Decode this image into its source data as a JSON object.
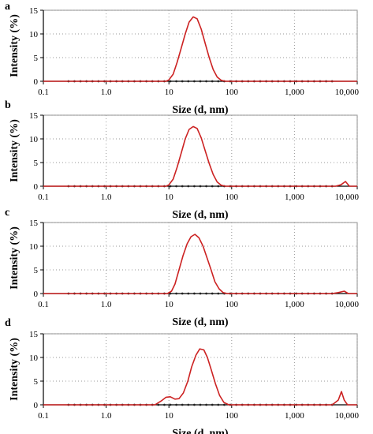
{
  "chart_data": [
    {
      "type": "line",
      "panel_label": "a",
      "xlabel": "Size (d, nm)",
      "ylabel": "Intensity (%)",
      "xscale": "log",
      "xlim": [
        0.1,
        10000
      ],
      "ylim": [
        0,
        15
      ],
      "grid": true,
      "x_ticks": [
        {
          "value": 0.1,
          "label": "0.1"
        },
        {
          "value": 1,
          "label": "1.0"
        },
        {
          "value": 10,
          "label": "10"
        },
        {
          "value": 100,
          "label": "100"
        },
        {
          "value": 1000,
          "label": "1,000"
        },
        {
          "value": 10000,
          "label": "10,000"
        }
      ],
      "y_ticks": [
        {
          "value": 0,
          "label": "0"
        },
        {
          "value": 5,
          "label": "5"
        },
        {
          "value": 10,
          "label": "10"
        },
        {
          "value": 15,
          "label": "15"
        }
      ],
      "series": [
        {
          "color": "#cc2222",
          "x": [
            0.1,
            9,
            10,
            11.7,
            13.5,
            15.7,
            18.2,
            21,
            24.4,
            28.2,
            32.7,
            37.8,
            43.8,
            50.7,
            58.8,
            68,
            80,
            10000
          ],
          "y": [
            0,
            0,
            0.3,
            1.5,
            4,
            7,
            10,
            12.5,
            13.6,
            13.2,
            11,
            8,
            5,
            2.5,
            0.9,
            0.2,
            0,
            0
          ]
        }
      ]
    },
    {
      "type": "line",
      "panel_label": "b",
      "xlabel": "Size (d, nm)",
      "ylabel": "Intensity (%)",
      "xscale": "log",
      "xlim": [
        0.1,
        10000
      ],
      "ylim": [
        0,
        15
      ],
      "grid": true,
      "x_ticks": [
        {
          "value": 0.1,
          "label": "0.1"
        },
        {
          "value": 1,
          "label": "1.0"
        },
        {
          "value": 10,
          "label": "10"
        },
        {
          "value": 100,
          "label": "100"
        },
        {
          "value": 1000,
          "label": "1,000"
        },
        {
          "value": 10000,
          "label": "10,000"
        }
      ],
      "y_ticks": [
        {
          "value": 0,
          "label": "0"
        },
        {
          "value": 5,
          "label": "5"
        },
        {
          "value": 10,
          "label": "10"
        },
        {
          "value": 15,
          "label": "15"
        }
      ],
      "series": [
        {
          "color": "#cc2222",
          "x": [
            0.1,
            9,
            10,
            11.7,
            13.5,
            15.7,
            18.2,
            21,
            24.4,
            28.2,
            32.7,
            37.8,
            43.8,
            50.7,
            58.8,
            68,
            80,
            4500,
            5500,
            6500,
            7500,
            10000
          ],
          "y": [
            0,
            0,
            0.3,
            1.5,
            4,
            7,
            10,
            12,
            12.6,
            12.2,
            10.2,
            7.5,
            4.8,
            2.5,
            0.9,
            0.2,
            0,
            0,
            0.3,
            1,
            0,
            0
          ]
        }
      ]
    },
    {
      "type": "line",
      "panel_label": "c",
      "xlabel": "Size (d, nm)",
      "ylabel": "Intensity (%)",
      "xscale": "log",
      "xlim": [
        0.1,
        10000
      ],
      "ylim": [
        0,
        15
      ],
      "grid": true,
      "x_ticks": [
        {
          "value": 0.1,
          "label": "0.1"
        },
        {
          "value": 1,
          "label": "1.0"
        },
        {
          "value": 10,
          "label": "10"
        },
        {
          "value": 100,
          "label": "100"
        },
        {
          "value": 1000,
          "label": "1,000"
        },
        {
          "value": 10000,
          "label": "10,000"
        }
      ],
      "y_ticks": [
        {
          "value": 0,
          "label": "0"
        },
        {
          "value": 5,
          "label": "5"
        },
        {
          "value": 10,
          "label": "10"
        },
        {
          "value": 15,
          "label": "15"
        }
      ],
      "series": [
        {
          "color": "#cc2222",
          "x": [
            0.1,
            9.5,
            11,
            12.5,
            14.5,
            16.8,
            19.5,
            22.5,
            26,
            30,
            35,
            40.5,
            47,
            54,
            63,
            73,
            85,
            4000,
            5000,
            6200,
            7200,
            10000
          ],
          "y": [
            0,
            0,
            0.5,
            2,
            5,
            8,
            10.5,
            12,
            12.5,
            11.8,
            10,
            7.5,
            5,
            2.5,
            1,
            0.2,
            0,
            0,
            0.2,
            0.5,
            0,
            0
          ]
        }
      ]
    },
    {
      "type": "line",
      "panel_label": "d",
      "xlabel": "Size (d, nm)",
      "ylabel": "Intensity (%)",
      "xscale": "log",
      "xlim": [
        0.1,
        10000
      ],
      "ylim": [
        0,
        15
      ],
      "grid": true,
      "x_ticks": [
        {
          "value": 0.1,
          "label": "0.1"
        },
        {
          "value": 1,
          "label": "1.0"
        },
        {
          "value": 10,
          "label": "10"
        },
        {
          "value": 100,
          "label": "100"
        },
        {
          "value": 1000,
          "label": "1,000"
        },
        {
          "value": 10000,
          "label": "10,000"
        }
      ],
      "y_ticks": [
        {
          "value": 0,
          "label": "0"
        },
        {
          "value": 5,
          "label": "5"
        },
        {
          "value": 10,
          "label": "10"
        },
        {
          "value": 15,
          "label": "15"
        }
      ],
      "series": [
        {
          "color": "#cc2222",
          "x": [
            0.1,
            6,
            7.5,
            9,
            10.5,
            12.5,
            14.5,
            17,
            20,
            23,
            27,
            31,
            36,
            41,
            47,
            55,
            64,
            75,
            90,
            4000,
            5000,
            5600,
            6200,
            7000,
            10000
          ],
          "y": [
            0,
            0,
            0.8,
            1.6,
            1.7,
            1.2,
            1.3,
            2.5,
            5,
            8,
            10.5,
            11.8,
            11.6,
            10,
            7.5,
            4.5,
            2,
            0.5,
            0,
            0,
            1,
            2.8,
            1,
            0,
            0
          ]
        }
      ]
    }
  ]
}
